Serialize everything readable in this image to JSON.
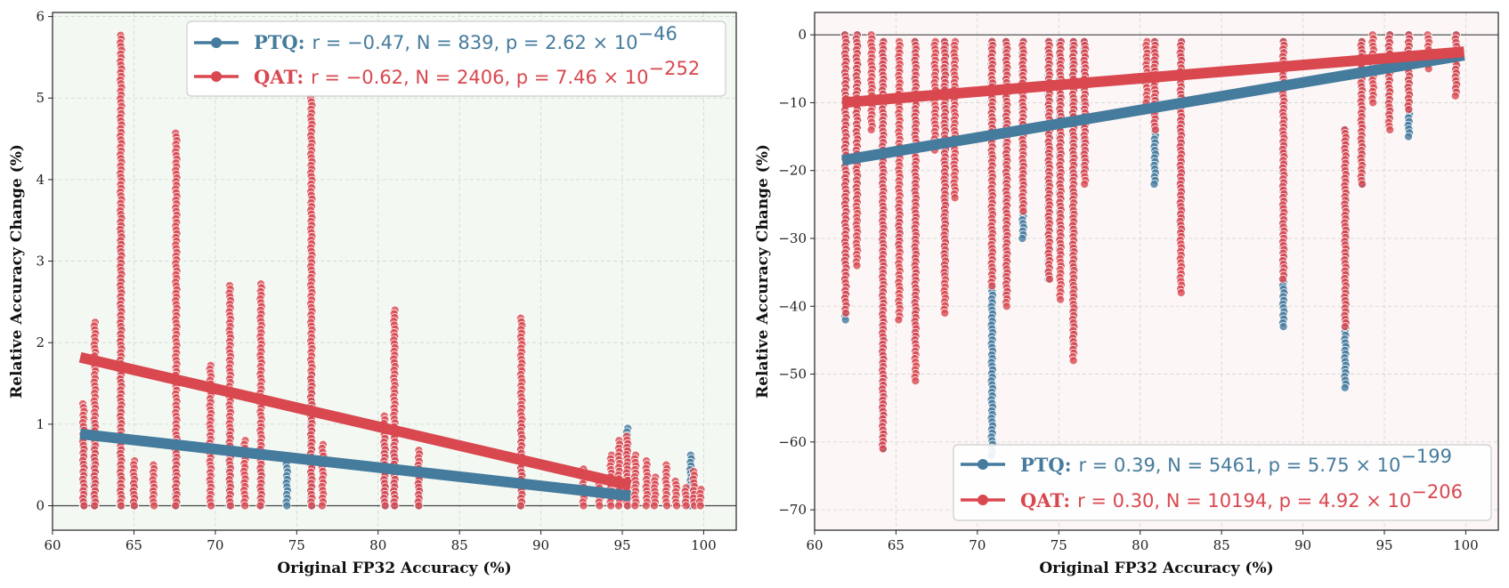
{
  "colors": {
    "ptq": "#457b9d",
    "qat": "#d9474f",
    "left_bg": "#f3f9f2",
    "right_bg": "#fcf6f6"
  },
  "chart_data": [
    {
      "type": "scatter",
      "xlabel": "Original FP32 Accuracy (%)",
      "ylabel": "Relative Accuracy Change (%)",
      "xlim": [
        60,
        102
      ],
      "ylim": [
        -0.3,
        6.05
      ],
      "xticks": [
        "60",
        "65",
        "70",
        "75",
        "80",
        "85",
        "90",
        "95",
        "100"
      ],
      "yticks": [
        "0",
        "1",
        "2",
        "3",
        "4",
        "5",
        "6"
      ],
      "reference_line_y": 0,
      "legend": {
        "position": "top-right",
        "entries": [
          {
            "method": "PTQ:",
            "stats": "r = −0.47, N = 839, p = 2.62 × 10",
            "exp": "−46"
          },
          {
            "method": "QAT:",
            "stats": "r = −0.62, N = 2406, p = 7.46 × 10",
            "exp": "−252"
          }
        ]
      },
      "series": [
        {
          "name": "PTQ",
          "fit": {
            "x": [
              61.7,
              95.5
            ],
            "y": [
              0.88,
              0.12
            ]
          },
          "columns": [
            {
              "x": 61.9,
              "ymin": 0.0,
              "ymax": 0.95
            },
            {
              "x": 62.6,
              "ymin": 0.0,
              "ymax": 1.0
            },
            {
              "x": 64.2,
              "ymin": 0.0,
              "ymax": 3.55
            },
            {
              "x": 65.0,
              "ymin": 0.0,
              "ymax": 0.3
            },
            {
              "x": 67.6,
              "ymin": 0.0,
              "ymax": 0.8
            },
            {
              "x": 70.9,
              "ymin": 0.0,
              "ymax": 0.9
            },
            {
              "x": 72.8,
              "ymin": 0.0,
              "ymax": 0.7
            },
            {
              "x": 74.4,
              "ymin": 0.0,
              "ymax": 0.6
            },
            {
              "x": 75.9,
              "ymin": 0.0,
              "ymax": 1.6
            },
            {
              "x": 80.4,
              "ymin": 0.0,
              "ymax": 0.9
            },
            {
              "x": 81.0,
              "ymin": 0.0,
              "ymax": 0.9
            },
            {
              "x": 82.5,
              "ymin": 0.0,
              "ymax": 0.5
            },
            {
              "x": 88.8,
              "ymin": 0.0,
              "ymax": 1.0
            },
            {
              "x": 95.3,
              "ymin": 0.0,
              "ymax": 0.95
            },
            {
              "x": 99.2,
              "ymin": 0.0,
              "ymax": 0.62
            }
          ]
        },
        {
          "name": "QAT",
          "fit": {
            "x": [
              61.7,
              95.5
            ],
            "y": [
              1.82,
              0.25
            ]
          },
          "columns": [
            {
              "x": 61.9,
              "ymin": 0.0,
              "ymax": 1.25
            },
            {
              "x": 62.6,
              "ymin": 0.0,
              "ymax": 2.25
            },
            {
              "x": 64.2,
              "ymin": 0.0,
              "ymax": 5.77
            },
            {
              "x": 65.0,
              "ymin": 0.0,
              "ymax": 0.55
            },
            {
              "x": 66.2,
              "ymin": 0.0,
              "ymax": 0.5
            },
            {
              "x": 67.6,
              "ymin": 0.0,
              "ymax": 4.57
            },
            {
              "x": 69.7,
              "ymin": 0.0,
              "ymax": 1.72
            },
            {
              "x": 70.9,
              "ymin": 0.0,
              "ymax": 2.7
            },
            {
              "x": 71.8,
              "ymin": 0.0,
              "ymax": 0.8
            },
            {
              "x": 72.8,
              "ymin": 0.0,
              "ymax": 2.72
            },
            {
              "x": 75.9,
              "ymin": 0.0,
              "ymax": 5.0
            },
            {
              "x": 76.6,
              "ymin": 0.0,
              "ymax": 0.75
            },
            {
              "x": 80.4,
              "ymin": 0.0,
              "ymax": 1.1
            },
            {
              "x": 81.0,
              "ymin": 0.0,
              "ymax": 2.4
            },
            {
              "x": 82.5,
              "ymin": 0.0,
              "ymax": 0.68
            },
            {
              "x": 88.8,
              "ymin": 0.0,
              "ymax": 2.3
            },
            {
              "x": 92.6,
              "ymin": 0.0,
              "ymax": 0.45
            },
            {
              "x": 93.6,
              "ymin": 0.0,
              "ymax": 0.35
            },
            {
              "x": 94.3,
              "ymin": 0.0,
              "ymax": 0.62
            },
            {
              "x": 94.8,
              "ymin": 0.0,
              "ymax": 0.8
            },
            {
              "x": 95.3,
              "ymin": 0.0,
              "ymax": 0.85
            },
            {
              "x": 95.8,
              "ymin": 0.0,
              "ymax": 0.62
            },
            {
              "x": 96.5,
              "ymin": 0.0,
              "ymax": 0.55
            },
            {
              "x": 97.0,
              "ymin": 0.0,
              "ymax": 0.35
            },
            {
              "x": 97.7,
              "ymin": 0.0,
              "ymax": 0.5
            },
            {
              "x": 98.3,
              "ymin": 0.0,
              "ymax": 0.3
            },
            {
              "x": 98.9,
              "ymin": 0.0,
              "ymax": 0.22
            },
            {
              "x": 99.4,
              "ymin": 0.0,
              "ymax": 0.42
            },
            {
              "x": 99.8,
              "ymin": 0.0,
              "ymax": 0.2
            }
          ]
        }
      ]
    },
    {
      "type": "scatter",
      "xlabel": "Original FP32 Accuracy (%)",
      "ylabel": "Relative Accuracy Change (%)",
      "xlim": [
        60,
        102
      ],
      "ylim": [
        -73,
        3.3
      ],
      "xticks": [
        "60",
        "65",
        "70",
        "75",
        "80",
        "85",
        "90",
        "95",
        "100"
      ],
      "yticks": [
        "0",
        "−10",
        "−20",
        "−30",
        "−40",
        "−50",
        "−60",
        "−70"
      ],
      "reference_line_y": 0,
      "legend": {
        "position": "bottom-right",
        "entries": [
          {
            "method": "PTQ:",
            "stats": "r = 0.39, N = 5461, p = 5.75 × 10",
            "exp": "−199"
          },
          {
            "method": "QAT:",
            "stats": "r = 0.30, N = 10194, p = 4.92 × 10",
            "exp": "−206"
          }
        ]
      },
      "series": [
        {
          "name": "PTQ",
          "fit": {
            "x": [
              61.7,
              99.9
            ],
            "y": [
              -18.5,
              -3.0
            ]
          },
          "columns": [
            {
              "x": 61.9,
              "ymin": -42,
              "ymax": 0
            },
            {
              "x": 62.6,
              "ymin": -24,
              "ymax": 0
            },
            {
              "x": 64.2,
              "ymin": -61,
              "ymax": -1
            },
            {
              "x": 65.2,
              "ymin": -31,
              "ymax": -26
            },
            {
              "x": 66.2,
              "ymin": -45,
              "ymax": -1
            },
            {
              "x": 68.0,
              "ymin": -35,
              "ymax": -1
            },
            {
              "x": 70.9,
              "ymin": -62,
              "ymax": -1
            },
            {
              "x": 71.8,
              "ymin": -38,
              "ymax": -1
            },
            {
              "x": 72.8,
              "ymin": -30,
              "ymax": -1
            },
            {
              "x": 74.4,
              "ymin": -36,
              "ymax": -1
            },
            {
              "x": 75.1,
              "ymin": -32,
              "ymax": -1
            },
            {
              "x": 75.9,
              "ymin": -46,
              "ymax": -1
            },
            {
              "x": 76.6,
              "ymin": -20,
              "ymax": -1
            },
            {
              "x": 80.9,
              "ymin": -22,
              "ymax": -1
            },
            {
              "x": 82.5,
              "ymin": -29,
              "ymax": -1
            },
            {
              "x": 88.8,
              "ymin": -43,
              "ymax": -1
            },
            {
              "x": 92.6,
              "ymin": -52,
              "ymax": -14
            },
            {
              "x": 93.6,
              "ymin": -22,
              "ymax": -1
            },
            {
              "x": 95.3,
              "ymin": -12,
              "ymax": 0
            },
            {
              "x": 96.5,
              "ymin": -15,
              "ymax": 0
            },
            {
              "x": 99.4,
              "ymin": -8,
              "ymax": 0
            }
          ]
        },
        {
          "name": "QAT",
          "fit": {
            "x": [
              61.7,
              99.9
            ],
            "y": [
              -10.0,
              -2.5
            ]
          },
          "columns": [
            {
              "x": 61.9,
              "ymin": -41,
              "ymax": 0
            },
            {
              "x": 62.6,
              "ymin": -34,
              "ymax": 0
            },
            {
              "x": 63.5,
              "ymin": -14,
              "ymax": 0
            },
            {
              "x": 64.2,
              "ymin": -61,
              "ymax": -1
            },
            {
              "x": 65.2,
              "ymin": -42,
              "ymax": -1
            },
            {
              "x": 66.2,
              "ymin": -51,
              "ymax": -1
            },
            {
              "x": 67.4,
              "ymin": -17,
              "ymax": -1
            },
            {
              "x": 68.0,
              "ymin": -41,
              "ymax": -1
            },
            {
              "x": 68.6,
              "ymin": -24,
              "ymax": -1
            },
            {
              "x": 70.9,
              "ymin": -37,
              "ymax": -1
            },
            {
              "x": 71.8,
              "ymin": -40,
              "ymax": -1
            },
            {
              "x": 72.8,
              "ymin": -26,
              "ymax": -1
            },
            {
              "x": 74.4,
              "ymin": -36,
              "ymax": -1
            },
            {
              "x": 75.1,
              "ymin": -39,
              "ymax": -1
            },
            {
              "x": 75.9,
              "ymin": -48,
              "ymax": -1
            },
            {
              "x": 76.6,
              "ymin": -22,
              "ymax": -1
            },
            {
              "x": 80.4,
              "ymin": -10,
              "ymax": -1
            },
            {
              "x": 80.9,
              "ymin": -14,
              "ymax": -1
            },
            {
              "x": 82.5,
              "ymin": -38,
              "ymax": -1
            },
            {
              "x": 88.8,
              "ymin": -36,
              "ymax": -1
            },
            {
              "x": 92.6,
              "ymin": -43,
              "ymax": -14
            },
            {
              "x": 93.6,
              "ymin": -22,
              "ymax": -1
            },
            {
              "x": 94.3,
              "ymin": -10,
              "ymax": 0
            },
            {
              "x": 95.3,
              "ymin": -14,
              "ymax": 0
            },
            {
              "x": 96.5,
              "ymin": -11,
              "ymax": 0
            },
            {
              "x": 97.7,
              "ymin": -5,
              "ymax": 0
            },
            {
              "x": 99.4,
              "ymin": -9,
              "ymax": 0
            }
          ]
        }
      ]
    }
  ]
}
